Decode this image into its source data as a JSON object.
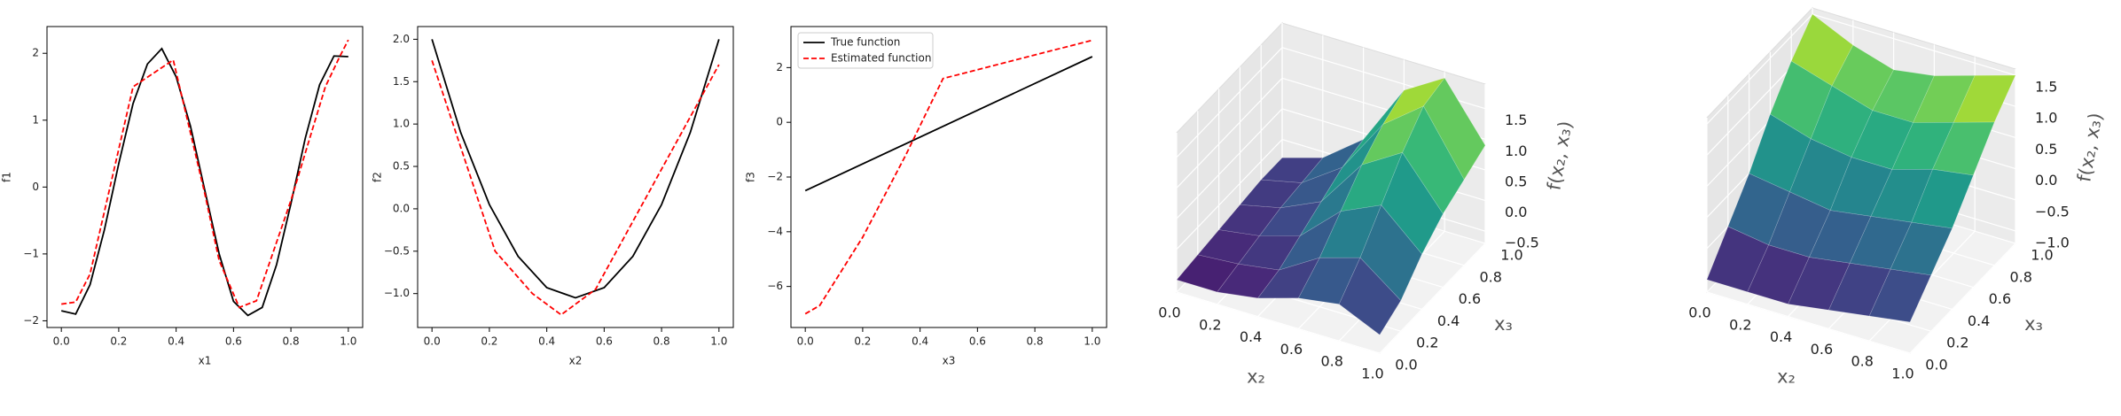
{
  "chart_data": [
    {
      "type": "line",
      "xlabel": "x1",
      "ylabel": "f1",
      "xlim": [
        -0.05,
        1.05
      ],
      "ylim": [
        -2.1,
        2.4
      ],
      "xticks": [
        {
          "value": 0,
          "label": "0.0"
        },
        {
          "value": 0.2,
          "label": "0.2"
        },
        {
          "value": 0.4,
          "label": "0.4"
        },
        {
          "value": 0.6,
          "label": "0.6"
        },
        {
          "value": 0.8,
          "label": "0.8"
        },
        {
          "value": 1,
          "label": "1.0"
        }
      ],
      "yticks": [
        {
          "value": -2,
          "label": "−2"
        },
        {
          "value": -1,
          "label": "−1"
        },
        0,
        1,
        2
      ],
      "series": [
        {
          "color": "#000000",
          "linestyle": "solid",
          "x": [
            0,
            0.05,
            0.1,
            0.15,
            0.2,
            0.25,
            0.3,
            0.35,
            0.4,
            0.45,
            0.5,
            0.55,
            0.6,
            0.65,
            0.7,
            0.75,
            0.8,
            0.85,
            0.9,
            0.95,
            1.0
          ],
          "values": [
            -1.85,
            -1.9,
            -1.46,
            -0.64,
            0.35,
            1.25,
            1.84,
            2.07,
            1.65,
            0.91,
            -0.05,
            -1.0,
            -1.71,
            -1.92,
            -1.8,
            -1.16,
            -0.25,
            0.73,
            1.53,
            1.96,
            1.95
          ]
        },
        {
          "color": "#ff0000",
          "linestyle": "dashed",
          "x": [
            0,
            0.05,
            0.1,
            0.25,
            0.39,
            0.5,
            0.55,
            0.62,
            0.68,
            0.8,
            0.92,
            0.97,
            1.0
          ],
          "values": [
            -1.75,
            -1.72,
            -1.3,
            1.5,
            1.9,
            -0.1,
            -1.1,
            -1.8,
            -1.7,
            -0.2,
            1.5,
            1.95,
            2.2
          ]
        }
      ]
    },
    {
      "type": "line",
      "xlabel": "x2",
      "ylabel": "f2",
      "xlim": [
        -0.05,
        1.05
      ],
      "ylim": [
        -1.4,
        2.15
      ],
      "xticks": [
        {
          "value": 0,
          "label": "0.0"
        },
        {
          "value": 0.2,
          "label": "0.2"
        },
        {
          "value": 0.4,
          "label": "0.4"
        },
        {
          "value": 0.6,
          "label": "0.6"
        },
        {
          "value": 0.8,
          "label": "0.8"
        },
        {
          "value": 1,
          "label": "1.0"
        }
      ],
      "yticks": [
        {
          "value": -1,
          "label": "−1.0"
        },
        {
          "value": -0.5,
          "label": "−0.5"
        },
        {
          "value": 0,
          "label": "0.0"
        },
        0.5,
        {
          "value": 1,
          "label": "1.0"
        },
        1.5,
        {
          "value": 2,
          "label": "2.0"
        }
      ],
      "series": [
        {
          "color": "#000000",
          "linestyle": "solid",
          "x": [
            0,
            0.1,
            0.2,
            0.3,
            0.4,
            0.5,
            0.6,
            0.7,
            0.8,
            0.9,
            1.0
          ],
          "values": [
            2.0,
            0.9,
            0.05,
            -0.56,
            -0.93,
            -1.05,
            -0.93,
            -0.56,
            0.05,
            0.9,
            2.0
          ]
        },
        {
          "color": "#ff0000",
          "linestyle": "dashed",
          "x": [
            0,
            0.22,
            0.35,
            0.45,
            0.57,
            1.0
          ],
          "values": [
            1.75,
            -0.5,
            -1.0,
            -1.25,
            -0.95,
            1.7
          ]
        }
      ]
    },
    {
      "type": "line",
      "xlabel": "x3",
      "ylabel": "f3",
      "xlim": [
        -0.05,
        1.05
      ],
      "ylim": [
        -7.5,
        3.5
      ],
      "legend": "upper left",
      "xticks": [
        {
          "value": 0,
          "label": "0.0"
        },
        {
          "value": 0.2,
          "label": "0.2"
        },
        {
          "value": 0.4,
          "label": "0.4"
        },
        {
          "value": 0.6,
          "label": "0.6"
        },
        {
          "value": 0.8,
          "label": "0.8"
        },
        {
          "value": 1,
          "label": "1.0"
        }
      ],
      "yticks": [
        {
          "value": -6,
          "label": "−6"
        },
        {
          "value": -4,
          "label": "−4"
        },
        {
          "value": -2,
          "label": "−2"
        },
        0,
        2
      ],
      "series": [
        {
          "name": "True function",
          "color": "#000000",
          "linestyle": "solid",
          "x": [
            0,
            1.0
          ],
          "values": [
            -2.5,
            2.4
          ]
        },
        {
          "name": "Estimated function",
          "color": "#ff0000",
          "linestyle": "dashed",
          "x": [
            0,
            0.05,
            0.2,
            0.35,
            0.48,
            1.0
          ],
          "values": [
            -7.0,
            -6.7,
            -4.2,
            -1.2,
            1.6,
            3.0
          ]
        }
      ]
    },
    {
      "type": "surface3d",
      "colormap": "viridis",
      "xlabel": "x₂",
      "ylabel": "x₃",
      "zlabel": "f(x₂, x₃)",
      "xlim": [
        0,
        1
      ],
      "ylim": [
        0,
        1
      ],
      "zlim": [
        -0.7,
        1.9
      ],
      "xticks": [
        {
          "value": 0,
          "label": "0.0"
        },
        {
          "value": 0.2,
          "label": "0.2"
        },
        {
          "value": 0.4,
          "label": "0.4"
        },
        {
          "value": 0.6,
          "label": "0.6"
        },
        {
          "value": 0.8,
          "label": "0.8"
        },
        {
          "value": 1,
          "label": "1.0"
        }
      ],
      "yticks": [
        {
          "value": 0,
          "label": "0.0"
        },
        {
          "value": 0.2,
          "label": "0.2"
        },
        {
          "value": 0.4,
          "label": "0.4"
        },
        {
          "value": 0.6,
          "label": "0.6"
        },
        {
          "value": 0.8,
          "label": "0.8"
        },
        {
          "value": 1,
          "label": "1.0"
        }
      ],
      "zticks": [
        {
          "value": -0.5,
          "label": "−0.5"
        },
        {
          "value": 0,
          "label": "0.0"
        },
        0.5,
        {
          "value": 1,
          "label": "1.0"
        },
        1.5
      ],
      "x": [
        0,
        0.2,
        0.4,
        0.6,
        0.8,
        1.0
      ],
      "y": [
        0,
        0.2,
        0.4,
        0.6,
        0.8,
        1.0
      ],
      "z": [
        [
          -0.5,
          -0.45,
          -0.4,
          -0.35,
          -0.3,
          -0.3
        ],
        [
          -0.5,
          -0.4,
          -0.3,
          -0.2,
          -0.15,
          -0.1
        ],
        [
          -0.4,
          -0.3,
          -0.1,
          0.1,
          0.3,
          0.4
        ],
        [
          -0.2,
          0.1,
          0.5,
          0.9,
          1.2,
          1.4
        ],
        [
          -0.1,
          0.3,
          0.8,
          1.3,
          1.7,
          1.8
        ],
        [
          -0.4,
          -0.2,
          0.2,
          0.5,
          0.7,
          0.9
        ]
      ]
    },
    {
      "type": "surface3d",
      "colormap": "viridis",
      "xlabel": "x₂",
      "ylabel": "x₃",
      "zlabel": "f(x₂, x₃)",
      "xlim": [
        0,
        1
      ],
      "ylim": [
        0,
        1
      ],
      "zlim": [
        -1.2,
        1.6
      ],
      "xticks": [
        {
          "value": 0,
          "label": "0.0"
        },
        {
          "value": 0.2,
          "label": "0.2"
        },
        {
          "value": 0.4,
          "label": "0.4"
        },
        {
          "value": 0.6,
          "label": "0.6"
        },
        {
          "value": 0.8,
          "label": "0.8"
        },
        {
          "value": 1,
          "label": "1.0"
        }
      ],
      "yticks": [
        {
          "value": 0,
          "label": "0.0"
        },
        {
          "value": 0.2,
          "label": "0.2"
        },
        {
          "value": 0.4,
          "label": "0.4"
        },
        {
          "value": 0.6,
          "label": "0.6"
        },
        {
          "value": 0.8,
          "label": "0.8"
        },
        {
          "value": 1,
          "label": "1.0"
        }
      ],
      "zticks": [
        {
          "value": -1,
          "label": "−1.0"
        },
        {
          "value": -0.5,
          "label": "−0.5"
        },
        {
          "value": 0,
          "label": "0.0"
        },
        0.5,
        {
          "value": 1,
          "label": "1.0"
        },
        1.5
      ],
      "x": [
        0,
        0.2,
        0.4,
        0.6,
        0.8,
        1.0
      ],
      "y": [
        0,
        0.2,
        0.4,
        0.6,
        0.8,
        1.0
      ],
      "z": [
        [
          -1.0,
          -0.5,
          0.0,
          0.6,
          1.1,
          1.5
        ],
        [
          -1.0,
          -0.6,
          -0.1,
          0.4,
          0.9,
          1.2
        ],
        [
          -1.0,
          -0.6,
          -0.2,
          0.3,
          0.7,
          1.0
        ],
        [
          -0.9,
          -0.5,
          -0.1,
          0.3,
          0.7,
          1.1
        ],
        [
          -0.8,
          -0.4,
          0.0,
          0.5,
          0.9,
          1.3
        ],
        [
          -0.7,
          -0.3,
          0.1,
          0.6,
          1.1,
          1.5
        ]
      ]
    }
  ]
}
